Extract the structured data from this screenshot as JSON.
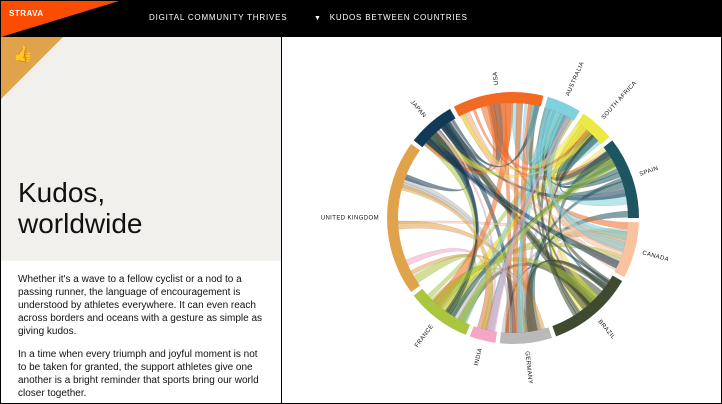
{
  "header": {
    "brand": "STRAVA",
    "section": "DIGITAL COMMUNITY THRIVES",
    "panel_title": "KUDOS BETWEEN COUNTRIES"
  },
  "hero": {
    "title_line1": "Kudos,",
    "title_line2": "worldwide",
    "icon": "thumbs-up-icon"
  },
  "body": {
    "p1": "Whether it's a wave to a fellow cyclist or a nod to a passing runner, the language of encouragement is understood by athletes everywhere. It can even reach across borders and oceans with a gesture as simple as giving kudos.",
    "p2": "In a time when every triumph and joyful moment is not to be taken for granted, the support athletes give one another is a bright reminder that sports bring our world closer together."
  },
  "chord": {
    "countries": [
      {
        "name": "USA",
        "color": "#f26a22",
        "start": -28,
        "end": 14
      },
      {
        "name": "AUSTRALIA",
        "color": "#7fd2dd",
        "start": 16,
        "end": 32
      },
      {
        "name": "SOUTH AFRICA",
        "color": "#ede845",
        "start": 34,
        "end": 50
      },
      {
        "name": "SPAIN",
        "color": "#1d5560",
        "start": 52,
        "end": 90
      },
      {
        "name": "CANADA",
        "color": "#f9c3a0",
        "start": 92,
        "end": 118
      },
      {
        "name": "BRAZIL",
        "color": "#3f4a31",
        "start": 120,
        "end": 160
      },
      {
        "name": "GERMANY",
        "color": "#b9b9b9",
        "start": 162,
        "end": 186
      },
      {
        "name": "INDIA",
        "color": "#f4a5c8",
        "start": 188,
        "end": 200
      },
      {
        "name": "FRANCE",
        "color": "#aac63f",
        "start": 202,
        "end": 232
      },
      {
        "name": "UNITED KINGDOM",
        "color": "#e0a24a",
        "start": 234,
        "end": 306
      },
      {
        "name": "JAPAN",
        "color": "#123a56",
        "start": 308,
        "end": 330
      }
    ]
  }
}
